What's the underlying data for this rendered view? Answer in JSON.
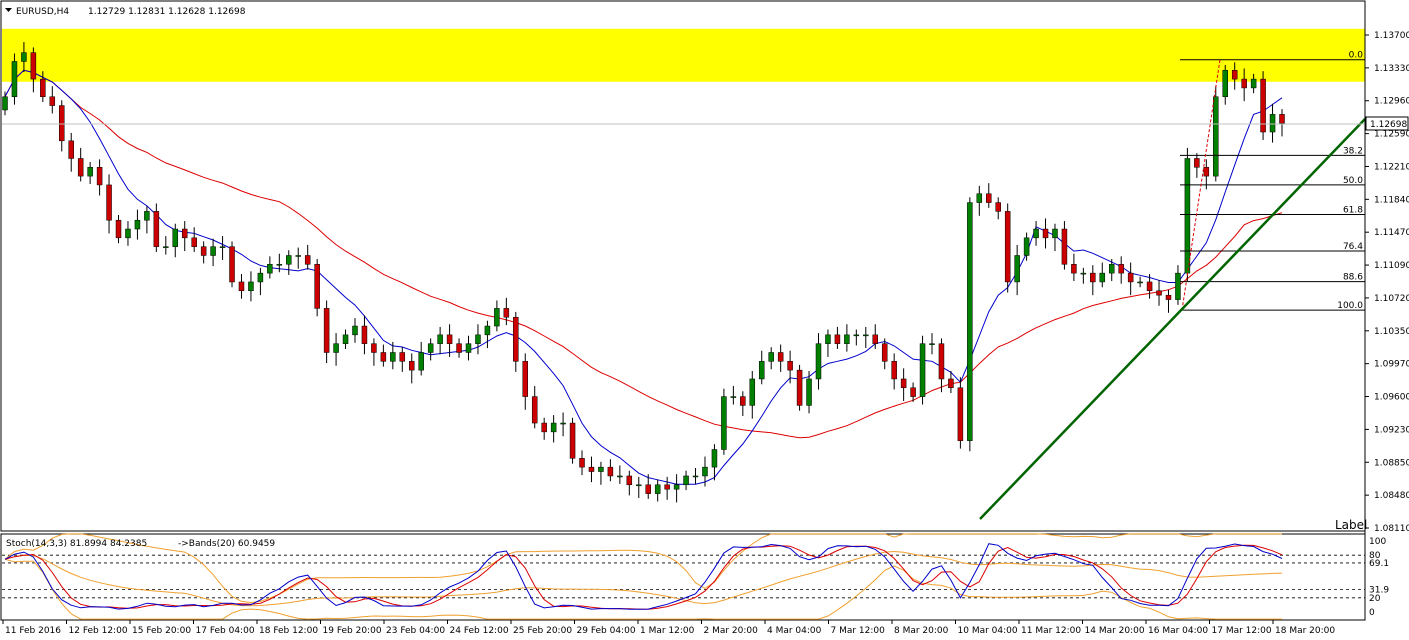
{
  "header": {
    "symbol": "EURUSD,H4",
    "ohlc": "1.12729 1.12831 1.12628 1.12698",
    "menu_icon": "triangle-down-icon"
  },
  "indicator": {
    "label": "Stoch(14,3,3) 81.8994 84.2385",
    "bands_label": "->Bands(20) 60.9459",
    "levels": [
      "100",
      "80",
      "69.1",
      "31.9",
      "20",
      "0"
    ]
  },
  "corner_label": "Label",
  "price_axis": {
    "ticks": [
      "1.13700",
      "1.13330",
      "1.12960",
      "1.12590",
      "1.12210",
      "1.11840",
      "1.11470",
      "1.11090",
      "1.10720",
      "1.10350",
      "1.09970",
      "1.09600",
      "1.09230",
      "1.08850",
      "1.08480",
      "1.08110"
    ],
    "current": "1.12698"
  },
  "time_axis": {
    "ticks": [
      "11 Feb 2016",
      "12 Feb 12:00",
      "15 Feb 20:00",
      "17 Feb 04:00",
      "18 Feb 12:00",
      "19 Feb 20:00",
      "23 Feb 04:00",
      "24 Feb 12:00",
      "25 Feb 20:00",
      "29 Feb 04:00",
      "1 Mar 12:00",
      "2 Mar 20:00",
      "4 Mar 04:00",
      "7 Mar 12:00",
      "8 Mar 20:00",
      "10 Mar 04:00",
      "11 Mar 12:00",
      "14 Mar 20:00",
      "16 Mar 04:00",
      "17 Mar 12:00",
      "18 Mar 20:00"
    ]
  },
  "fibonacci": {
    "levels": [
      "0.0",
      "38.2",
      "50.0",
      "61.8",
      "76.4",
      "88.6",
      "100.0"
    ]
  },
  "colors": {
    "bull": "#008000",
    "bear": "#cc0000",
    "zone": "#ffff00",
    "ma_fast": "#0000cc",
    "ma_slow": "#dd0000",
    "trendline": "#006400",
    "band": "#f0a030"
  },
  "chart_data": {
    "type": "candlestick",
    "symbol": "EURUSD,H4",
    "ylim": [
      1.0811,
      1.1385
    ],
    "resistance_zone": [
      1.1317,
      1.1377
    ],
    "fib_high": 1.1342,
    "fib_low": 1.1058,
    "trendline": [
      [
        1.0829,
        "low"
      ],
      [
        1.1268,
        "right edge"
      ]
    ],
    "ohlc_last": [
      1.12729,
      1.12831,
      1.12628,
      1.12698
    ],
    "stoch_k_last": 81.8994,
    "stoch_d_last": 84.2385,
    "bands_last": 60.9459,
    "close_path": [
      1.13,
      1.134,
      1.135,
      1.132,
      1.13,
      1.129,
      1.125,
      1.123,
      1.121,
      1.122,
      1.12,
      1.116,
      1.114,
      1.115,
      1.116,
      1.117,
      1.113,
      1.113,
      1.115,
      1.114,
      1.113,
      1.112,
      1.113,
      1.113,
      1.109,
      1.108,
      1.109,
      1.11,
      1.111,
      1.111,
      1.112,
      1.112,
      1.111,
      1.106,
      1.101,
      1.102,
      1.103,
      1.104,
      1.102,
      1.101,
      1.1,
      1.101,
      1.1,
      1.099,
      1.101,
      1.102,
      1.103,
      1.102,
      1.101,
      1.102,
      1.103,
      1.104,
      1.106,
      1.105,
      1.1,
      1.096,
      1.093,
      1.092,
      1.093,
      1.093,
      1.089,
      1.088,
      1.0875,
      1.088,
      1.087,
      1.087,
      1.086,
      1.086,
      1.085,
      1.086,
      1.0855,
      1.086,
      1.087,
      1.087,
      1.088,
      1.09,
      1.096,
      1.096,
      1.095,
      1.098,
      1.1,
      1.101,
      1.1,
      1.099,
      1.095,
      1.098,
      1.102,
      1.103,
      1.102,
      1.103,
      1.103,
      1.103,
      1.102,
      1.1,
      1.098,
      1.097,
      1.096,
      1.102,
      1.102,
      1.098,
      1.097,
      1.091,
      1.118,
      1.119,
      1.118,
      1.117,
      1.109,
      1.112,
      1.114,
      1.115,
      1.114,
      1.115,
      1.111,
      1.11,
      1.11,
      1.109,
      1.11,
      1.111,
      1.11,
      1.109,
      1.109,
      1.108,
      1.1075,
      1.107,
      1.11,
      1.123,
      1.122,
      1.121,
      1.13,
      1.133,
      1.132,
      1.131,
      1.132,
      1.126,
      1.128,
      1.127
    ]
  }
}
